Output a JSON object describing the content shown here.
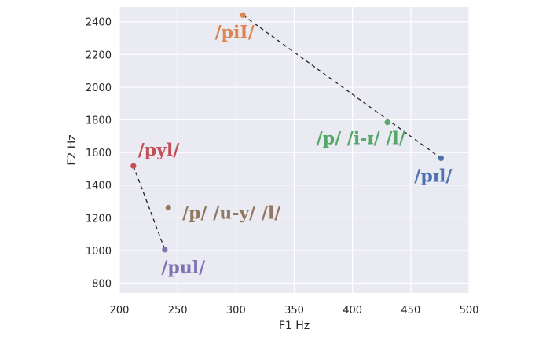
{
  "chart_data": {
    "type": "scatter",
    "xlabel": "F1 Hz",
    "ylabel": "F2 Hz",
    "xlim": [
      200,
      500
    ],
    "ylim": [
      740,
      2490
    ],
    "grid": true,
    "x_ticks": [
      200,
      250,
      300,
      350,
      400,
      450,
      500
    ],
    "y_ticks": [
      800,
      1000,
      1200,
      1400,
      1600,
      1800,
      2000,
      2200,
      2400
    ],
    "points": [
      {
        "x": 306,
        "y": 2440,
        "color": "#dd8452"
      },
      {
        "x": 430,
        "y": 1785,
        "color": "#55a868"
      },
      {
        "x": 476,
        "y": 1565,
        "color": "#4c72b0"
      },
      {
        "x": 212,
        "y": 1518,
        "color": "#c44e52"
      },
      {
        "x": 242,
        "y": 1262,
        "color": "#937860"
      },
      {
        "x": 239,
        "y": 1005,
        "color": "#8172b3"
      }
    ],
    "lines": [
      {
        "x": [
          306,
          476
        ],
        "y": [
          2440,
          1565
        ]
      },
      {
        "x": [
          212,
          239
        ],
        "y": [
          1518,
          1005
        ]
      }
    ],
    "annotations": [
      {
        "text": "/piI/",
        "x": 282,
        "y": 2300,
        "color": "#dd8452"
      },
      {
        "text": "/p/ /i-ɪ/ /l/",
        "x": 369,
        "y": 1650,
        "color": "#55a868"
      },
      {
        "text": "/pɪl/",
        "x": 453,
        "y": 1420,
        "color": "#4c72b0"
      },
      {
        "text": "/pyl/",
        "x": 216,
        "y": 1580,
        "color": "#c44e52"
      },
      {
        "text": "/p/ /u-y/ /l/",
        "x": 254,
        "y": 1195,
        "color": "#937860"
      },
      {
        "text": "/pul/",
        "x": 236,
        "y": 860,
        "color": "#8172b3"
      }
    ]
  }
}
